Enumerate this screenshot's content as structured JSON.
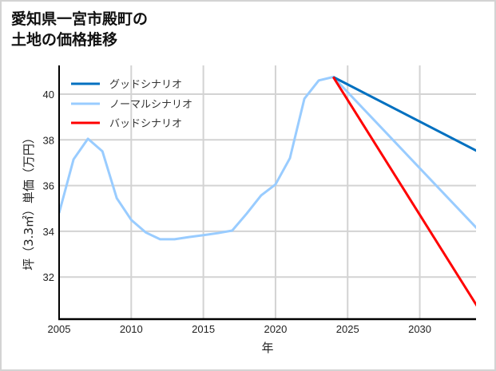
{
  "title": {
    "line1": "愛知県一宮市殿町の",
    "line2": "土地の価格推移"
  },
  "chart_data": {
    "type": "line",
    "title": "愛知県一宮市殿町の土地の価格推移",
    "xlabel": "年",
    "ylabel": "坪（3.3㎡）単価（万円）",
    "xlim": [
      2005,
      2033.9
    ],
    "ylim": [
      30.2,
      41.25
    ],
    "xticks": [
      2005,
      2010,
      2015,
      2020,
      2025,
      2030
    ],
    "yticks": [
      32,
      34,
      36,
      38,
      40
    ],
    "grid": true,
    "legend_position": "upper left",
    "series": [
      {
        "name": "グッドシナリオ",
        "color": "#0070c0",
        "x": [
          2024,
          2034
        ],
        "values": [
          40.75,
          37.5
        ]
      },
      {
        "name": "ノーマルシナリオ",
        "color": "#99ccff",
        "x": [
          2005,
          2006,
          2007,
          2008,
          2009,
          2010,
          2011,
          2012,
          2013,
          2014,
          2015,
          2016,
          2017,
          2018,
          2019,
          2020,
          2021,
          2022,
          2023,
          2024,
          2034
        ],
        "values": [
          34.8,
          37.15,
          38.05,
          37.5,
          35.45,
          34.5,
          33.95,
          33.65,
          33.65,
          33.75,
          33.83,
          33.92,
          34.03,
          34.77,
          35.57,
          36.05,
          37.2,
          39.8,
          40.6,
          40.75,
          34.1
        ]
      },
      {
        "name": "バッドシナリオ",
        "color": "#ff0000",
        "x": [
          2024,
          2034
        ],
        "values": [
          40.75,
          30.7
        ]
      }
    ]
  }
}
